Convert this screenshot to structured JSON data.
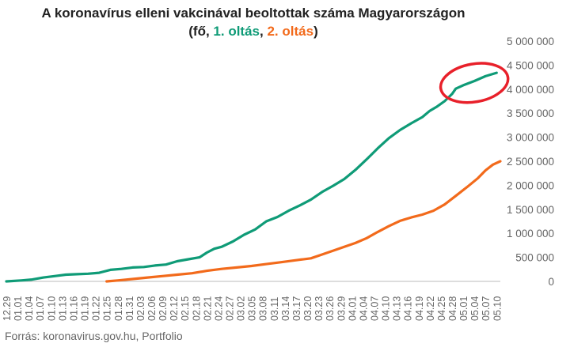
{
  "chart_data": {
    "type": "line",
    "title": "A koronavírus elleni vakcinával beoltottak száma Magyarországon",
    "subtitle_parts": [
      "(fő, ",
      "1. oltás",
      ", ",
      "2. oltás",
      ")"
    ],
    "source": "Forrás: koronavirus.gov.hu, Portfolio",
    "ylim": [
      0,
      5000000
    ],
    "y_ticks": [
      0,
      500000,
      1000000,
      1500000,
      2000000,
      2500000,
      3000000,
      3500000,
      4000000,
      4500000,
      5000000
    ],
    "y_tick_labels": [
      "0",
      "500 000",
      "1 000 000",
      "1 500 000",
      "2 000 000",
      "2 500 000",
      "3 000 000",
      "3 500 000",
      "4 000 000",
      "4 500 000",
      "5 000 000"
    ],
    "x_tick_labels": [
      "12.29",
      "01.01",
      "01.04",
      "01.07",
      "01.10",
      "01.13",
      "01.16",
      "01.19",
      "01.22",
      "01.25",
      "01.28",
      "01.31",
      "02.03",
      "02.06",
      "02.09",
      "02.12",
      "02.15",
      "02.18",
      "02.21",
      "02.24",
      "02.27",
      "03.02",
      "03.05",
      "03.08",
      "03.11",
      "03.14",
      "03.17",
      "03.20",
      "03.23",
      "03.26",
      "03.29",
      "04.01",
      "04.04",
      "04.07",
      "04.10",
      "04.13",
      "04.16",
      "04.19",
      "04.22",
      "04.25",
      "04.28",
      "05.01",
      "05.04",
      "05.07",
      "05.10"
    ],
    "grid": false,
    "series": [
      {
        "name": "1. oltás",
        "color": "#0f9b77",
        "points": [
          [
            0,
            0
          ],
          [
            4,
            20000
          ],
          [
            7,
            40000
          ],
          [
            10,
            80000
          ],
          [
            13,
            110000
          ],
          [
            16,
            140000
          ],
          [
            19,
            150000
          ],
          [
            22,
            160000
          ],
          [
            25,
            180000
          ],
          [
            28,
            240000
          ],
          [
            31,
            260000
          ],
          [
            34,
            290000
          ],
          [
            37,
            300000
          ],
          [
            40,
            330000
          ],
          [
            43,
            350000
          ],
          [
            46,
            420000
          ],
          [
            49,
            460000
          ],
          [
            52,
            500000
          ],
          [
            54,
            600000
          ],
          [
            56,
            680000
          ],
          [
            58,
            720000
          ],
          [
            61,
            830000
          ],
          [
            64,
            970000
          ],
          [
            67,
            1080000
          ],
          [
            70,
            1250000
          ],
          [
            73,
            1340000
          ],
          [
            76,
            1470000
          ],
          [
            79,
            1580000
          ],
          [
            82,
            1700000
          ],
          [
            85,
            1860000
          ],
          [
            88,
            1990000
          ],
          [
            91,
            2130000
          ],
          [
            94,
            2320000
          ],
          [
            97,
            2540000
          ],
          [
            100,
            2770000
          ],
          [
            103,
            2980000
          ],
          [
            106,
            3150000
          ],
          [
            109,
            3290000
          ],
          [
            112,
            3420000
          ],
          [
            114,
            3550000
          ],
          [
            116,
            3640000
          ],
          [
            118,
            3750000
          ],
          [
            120,
            3900000
          ],
          [
            121,
            4010000
          ],
          [
            123,
            4080000
          ],
          [
            126,
            4170000
          ],
          [
            129,
            4270000
          ],
          [
            132,
            4340000
          ]
        ]
      },
      {
        "name": "2. oltás",
        "color": "#f26a1b",
        "points": [
          [
            27,
            0
          ],
          [
            30,
            20000
          ],
          [
            34,
            50000
          ],
          [
            38,
            80000
          ],
          [
            42,
            110000
          ],
          [
            46,
            140000
          ],
          [
            50,
            170000
          ],
          [
            54,
            220000
          ],
          [
            58,
            260000
          ],
          [
            62,
            290000
          ],
          [
            66,
            320000
          ],
          [
            70,
            360000
          ],
          [
            74,
            400000
          ],
          [
            78,
            440000
          ],
          [
            82,
            480000
          ],
          [
            85,
            560000
          ],
          [
            88,
            640000
          ],
          [
            91,
            720000
          ],
          [
            94,
            800000
          ],
          [
            97,
            900000
          ],
          [
            100,
            1030000
          ],
          [
            103,
            1150000
          ],
          [
            106,
            1260000
          ],
          [
            109,
            1330000
          ],
          [
            112,
            1390000
          ],
          [
            115,
            1470000
          ],
          [
            118,
            1600000
          ],
          [
            121,
            1780000
          ],
          [
            124,
            1960000
          ],
          [
            127,
            2150000
          ],
          [
            129,
            2310000
          ],
          [
            131,
            2430000
          ],
          [
            133,
            2500000
          ]
        ]
      }
    ],
    "highlight_ellipse": {
      "series": "1. oltás",
      "x_center": 126,
      "y_center": 4130000,
      "color": "#e8202a"
    }
  }
}
